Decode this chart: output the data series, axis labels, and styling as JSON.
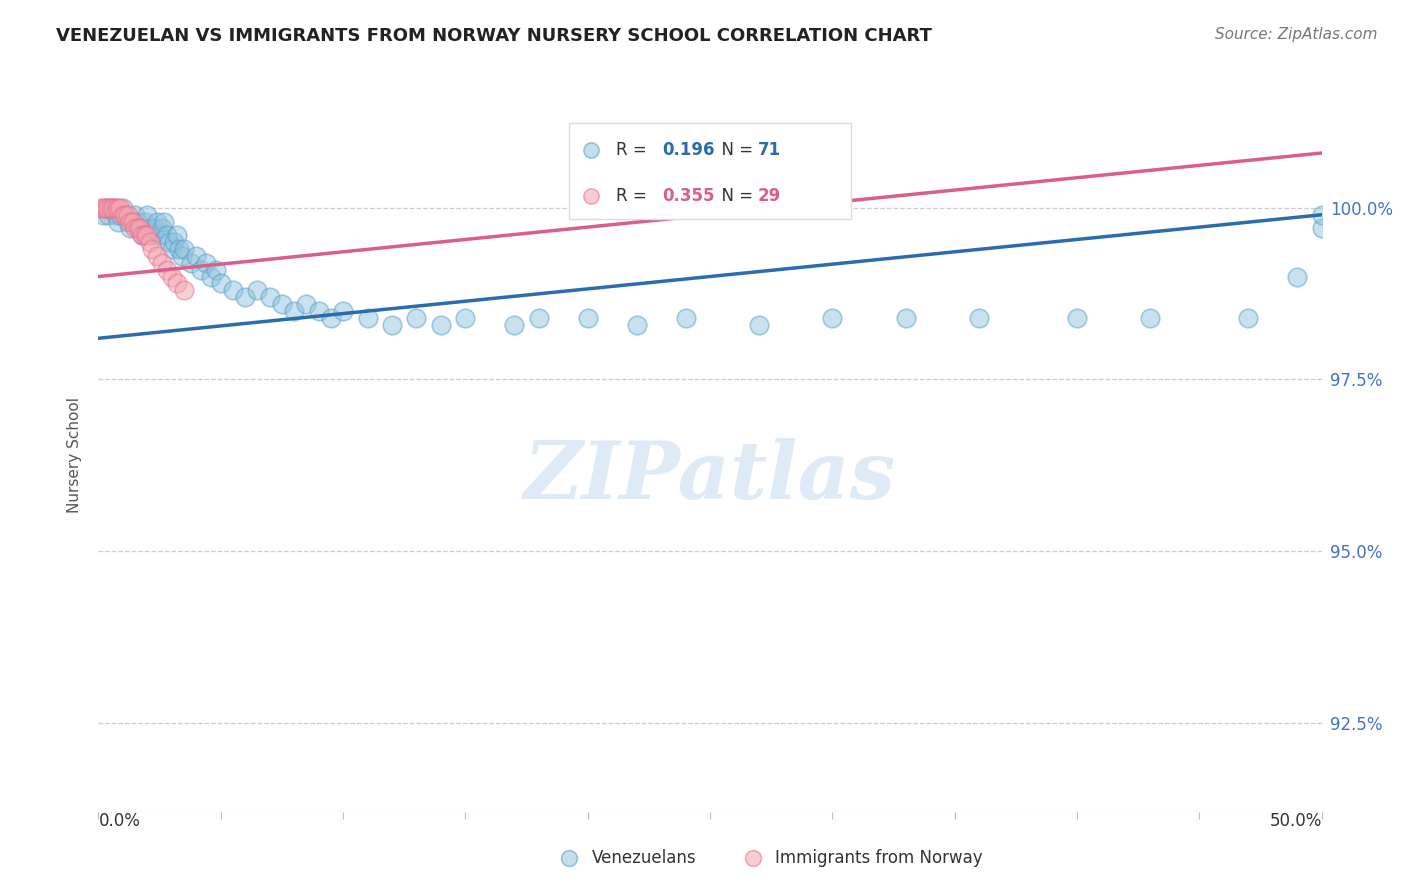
{
  "title": "VENEZUELAN VS IMMIGRANTS FROM NORWAY NURSERY SCHOOL CORRELATION CHART",
  "source": "Source: ZipAtlas.com",
  "ylabel": "Nursery School",
  "ytick_labels": [
    "100.0%",
    "97.5%",
    "95.0%",
    "92.5%"
  ],
  "ytick_values": [
    1.0,
    0.975,
    0.95,
    0.925
  ],
  "xmin": 0.0,
  "xmax": 0.5,
  "ymin": 0.912,
  "ymax": 1.016,
  "legend_blue_r": "0.196",
  "legend_blue_n": "71",
  "legend_pink_r": "0.355",
  "legend_pink_n": "29",
  "legend_label_blue": "Venezuelans",
  "legend_label_pink": "Immigrants from Norway",
  "blue_color": "#92c5de",
  "pink_color": "#f4a6b0",
  "blue_edge_color": "#5a9dc8",
  "pink_edge_color": "#e87090",
  "blue_line_color": "#2b6cb0",
  "pink_line_color": "#d95f8a",
  "blue_scatter_x": [
    0.002,
    0.003,
    0.004,
    0.005,
    0.006,
    0.007,
    0.008,
    0.009,
    0.01,
    0.011,
    0.012,
    0.013,
    0.014,
    0.015,
    0.016,
    0.017,
    0.018,
    0.019,
    0.02,
    0.021,
    0.022,
    0.023,
    0.024,
    0.025,
    0.026,
    0.027,
    0.028,
    0.029,
    0.03,
    0.031,
    0.032,
    0.033,
    0.034,
    0.035,
    0.038,
    0.04,
    0.042,
    0.044,
    0.046,
    0.048,
    0.05,
    0.055,
    0.06,
    0.065,
    0.07,
    0.075,
    0.08,
    0.085,
    0.09,
    0.095,
    0.1,
    0.11,
    0.12,
    0.13,
    0.14,
    0.15,
    0.17,
    0.18,
    0.2,
    0.22,
    0.24,
    0.27,
    0.3,
    0.33,
    0.36,
    0.4,
    0.43,
    0.47,
    0.49,
    0.5,
    0.5
  ],
  "blue_scatter_y": [
    0.999,
    1.0,
    0.999,
    1.0,
    1.0,
    0.999,
    0.998,
    0.999,
    1.0,
    0.999,
    0.998,
    0.997,
    0.998,
    0.999,
    0.998,
    0.997,
    0.996,
    0.998,
    0.999,
    0.997,
    0.996,
    0.997,
    0.998,
    0.996,
    0.997,
    0.998,
    0.996,
    0.995,
    0.994,
    0.995,
    0.996,
    0.994,
    0.993,
    0.994,
    0.992,
    0.993,
    0.991,
    0.992,
    0.99,
    0.991,
    0.989,
    0.988,
    0.987,
    0.988,
    0.987,
    0.986,
    0.985,
    0.986,
    0.985,
    0.984,
    0.985,
    0.984,
    0.983,
    0.984,
    0.983,
    0.984,
    0.983,
    0.984,
    0.984,
    0.983,
    0.984,
    0.983,
    0.984,
    0.984,
    0.984,
    0.984,
    0.984,
    0.984,
    0.99,
    0.997,
    0.999
  ],
  "pink_scatter_x": [
    0.001,
    0.002,
    0.003,
    0.004,
    0.005,
    0.006,
    0.007,
    0.008,
    0.009,
    0.01,
    0.011,
    0.012,
    0.013,
    0.014,
    0.015,
    0.016,
    0.017,
    0.018,
    0.019,
    0.02,
    0.021,
    0.022,
    0.024,
    0.026,
    0.028,
    0.03,
    0.032,
    0.035,
    0.3
  ],
  "pink_scatter_y": [
    1.0,
    1.0,
    1.0,
    1.0,
    1.0,
    1.0,
    1.0,
    1.0,
    1.0,
    0.999,
    0.999,
    0.999,
    0.998,
    0.998,
    0.997,
    0.997,
    0.997,
    0.996,
    0.996,
    0.996,
    0.995,
    0.994,
    0.993,
    0.992,
    0.991,
    0.99,
    0.989,
    0.988,
    1.0
  ],
  "blue_trend_x": [
    0.0,
    0.5
  ],
  "blue_trend_y": [
    0.981,
    0.999
  ],
  "pink_trend_x": [
    0.0,
    0.5
  ],
  "pink_trend_y": [
    0.99,
    1.008
  ]
}
